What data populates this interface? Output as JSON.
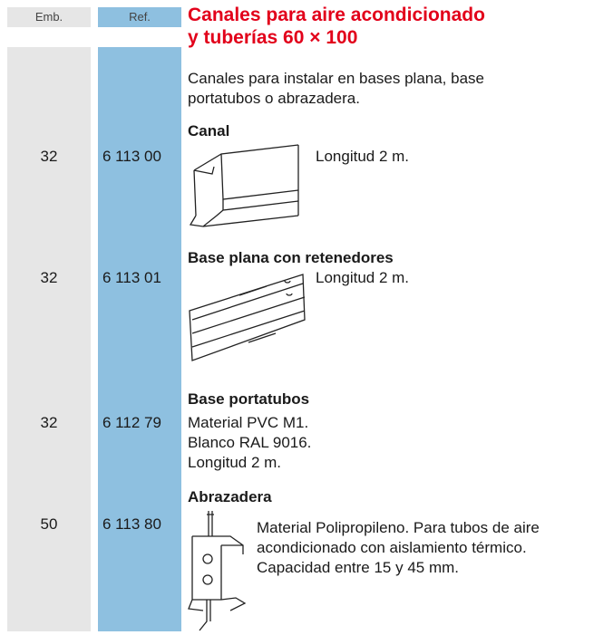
{
  "header": {
    "emb": "Emb.",
    "ref": "Ref.",
    "title": [
      "Canales para aire acondicionado",
      "y tuberías 60 × 100"
    ]
  },
  "intro": [
    "Canales para instalar en bases plana, base",
    "portatubos o abrazadera."
  ],
  "products": [
    {
      "emb": "32",
      "ref": "6 113 00",
      "name": "Canal",
      "details": [
        "Longitud 2 m."
      ]
    },
    {
      "emb": "32",
      "ref": "6 113 01",
      "name": "Base plana con retenedores",
      "details": [
        "Longitud 2 m."
      ]
    },
    {
      "emb": "32",
      "ref": "6 112 79",
      "name": "Base portatubos",
      "details": [
        "Material PVC M1.",
        "Blanco RAL 9016.",
        "Longitud 2 m."
      ]
    },
    {
      "emb": "50",
      "ref": "6 113 80",
      "name": "Abrazadera",
      "details": [
        "Material Polipropileno. Para tubos de aire",
        "acondicionado con aislamiento térmico.",
        "Capacidad entre 15 y 45 mm."
      ]
    }
  ]
}
